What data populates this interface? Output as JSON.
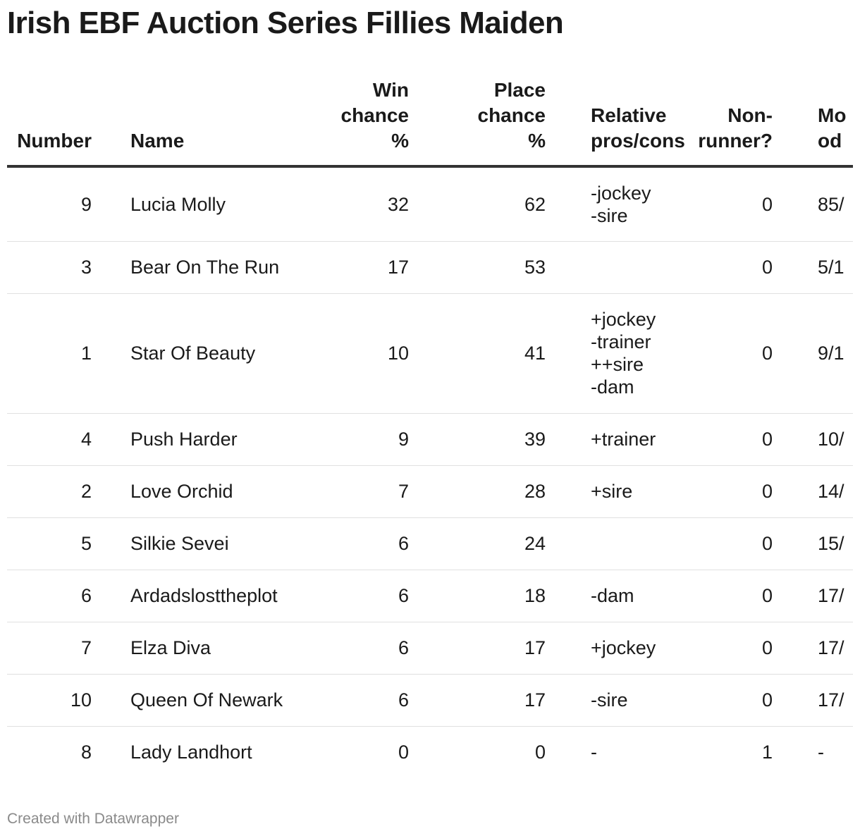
{
  "title": "Irish EBF Auction Series Fillies Maiden",
  "footer": "Created with Datawrapper",
  "chart_data": {
    "type": "table",
    "title": "Irish EBF Auction Series Fillies Maiden",
    "columns": [
      {
        "key": "number",
        "lines": [
          "Number"
        ]
      },
      {
        "key": "name",
        "lines": [
          "Name"
        ]
      },
      {
        "key": "win",
        "lines": [
          "Win",
          "chance",
          "%"
        ]
      },
      {
        "key": "place",
        "lines": [
          "Place",
          "chance",
          "%"
        ]
      },
      {
        "key": "pros",
        "lines": [
          "Relative",
          "pros/cons"
        ]
      },
      {
        "key": "nr",
        "lines": [
          "Non-",
          "runner?"
        ]
      },
      {
        "key": "odds",
        "lines": [
          "Mo",
          "od"
        ]
      }
    ],
    "rows": [
      {
        "number": "9",
        "name": "Lucia Molly",
        "win": "32",
        "place": "62",
        "pros": [
          "-jockey",
          "-sire"
        ],
        "nr": "0",
        "odds": "85/"
      },
      {
        "number": "3",
        "name": "Bear On The Run",
        "win": "17",
        "place": "53",
        "pros": [],
        "nr": "0",
        "odds": "5/1"
      },
      {
        "number": "1",
        "name": "Star Of Beauty",
        "win": "10",
        "place": "41",
        "pros": [
          "+jockey",
          "-trainer",
          "++sire",
          "-dam"
        ],
        "nr": "0",
        "odds": "9/1"
      },
      {
        "number": "4",
        "name": "Push Harder",
        "win": "9",
        "place": "39",
        "pros": [
          "+trainer"
        ],
        "nr": "0",
        "odds": "10/"
      },
      {
        "number": "2",
        "name": "Love Orchid",
        "win": "7",
        "place": "28",
        "pros": [
          "+sire"
        ],
        "nr": "0",
        "odds": "14/"
      },
      {
        "number": "5",
        "name": "Silkie Sevei",
        "win": "6",
        "place": "24",
        "pros": [],
        "nr": "0",
        "odds": "15/"
      },
      {
        "number": "6",
        "name": "Ardadslosttheplot",
        "win": "6",
        "place": "18",
        "pros": [
          "-dam"
        ],
        "nr": "0",
        "odds": "17/"
      },
      {
        "number": "7",
        "name": "Elza Diva",
        "win": "6",
        "place": "17",
        "pros": [
          "+jockey"
        ],
        "nr": "0",
        "odds": "17/"
      },
      {
        "number": "10",
        "name": "Queen Of Newark",
        "win": "6",
        "place": "17",
        "pros": [
          "-sire"
        ],
        "nr": "0",
        "odds": "17/"
      },
      {
        "number": "8",
        "name": "Lady Landhort",
        "win": "0",
        "place": "0",
        "pros": [
          "-"
        ],
        "nr": "1",
        "odds": "-"
      }
    ]
  }
}
